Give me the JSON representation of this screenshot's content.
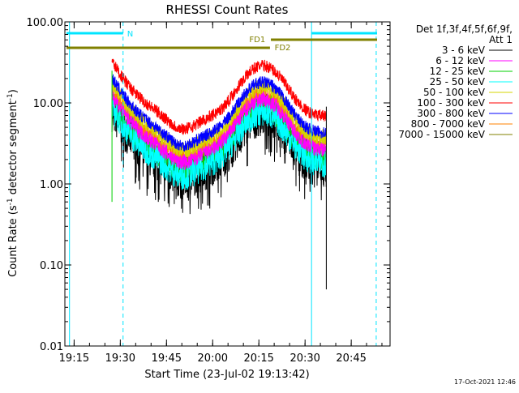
{
  "chart_data": {
    "type": "line",
    "title": "RHESSI Count Rates",
    "xlabel": "Start Time (23-Jul-02 19:13:42)",
    "ylabel_main": "Count Rate (s",
    "ylabel_sup": "-1",
    "ylabel_rest": " detector segment",
    "ylabel_sup2": "-1",
    "ylabel_end": ")",
    "y_scale": "log",
    "ylim": [
      0.01,
      100
    ],
    "xlim_minutes": [
      19.2,
      20.96
    ],
    "x_ticks": [
      "19:15",
      "19:30",
      "19:45",
      "20:00",
      "20:15",
      "20:30",
      "20:45"
    ],
    "x_tick_hours": [
      19.25,
      19.5,
      19.75,
      20.0,
      20.25,
      20.5,
      20.75
    ],
    "y_ticks": [
      "100.00",
      "10.00",
      "1.00",
      "0.10",
      "0.01"
    ],
    "y_tick_values": [
      100,
      10,
      1,
      0.1,
      0.01
    ],
    "legend_header": [
      "Det 1f,3f,4f,5f,6f,9f,",
      "Att 1"
    ],
    "legend_placement": "right",
    "series": [
      {
        "name": "3 - 6 keV",
        "color": "#000000"
      },
      {
        "name": "6 - 12 keV",
        "color": "#ff00ff"
      },
      {
        "name": "12 - 25 keV",
        "color": "#00d000"
      },
      {
        "name": "25 - 50 keV",
        "color": "#00ffff"
      },
      {
        "name": "50 - 100 keV",
        "color": "#d4d400"
      },
      {
        "name": "100 - 300 keV",
        "color": "#ff0000"
      },
      {
        "name": "300 - 800 keV",
        "color": "#0000ff"
      },
      {
        "name": "800 - 7000 keV",
        "color": "#ff8000"
      },
      {
        "name": "7000 - 15000 keV",
        "color": "#808000"
      }
    ],
    "annotations": {
      "N_label": "N",
      "FD1_label": "FD1",
      "FD2_label": "FD2",
      "cyan_color": "#00e5ff",
      "olive_color": "#808000"
    },
    "timestamp": "17-Oct-2021 12:46"
  }
}
